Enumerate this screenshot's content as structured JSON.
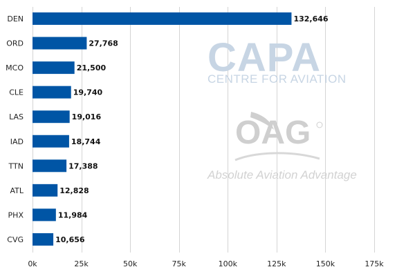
{
  "watermarks": {
    "capa_logo": "CAPA",
    "capa_sub": "CENTRE FOR AVIATION",
    "oag_logo": "OAG",
    "oag_tagline": "Absolute Aviation Advantage"
  },
  "chart_data": {
    "type": "bar",
    "orientation": "horizontal",
    "categories": [
      "DEN",
      "ORD",
      "MCO",
      "CLE",
      "LAS",
      "IAD",
      "TTN",
      "ATL",
      "PHX",
      "CVG"
    ],
    "values": [
      132646,
      27768,
      21500,
      19740,
      19016,
      18744,
      17388,
      12828,
      11984,
      10656
    ],
    "value_labels": [
      "132,646",
      "27,768",
      "21,500",
      "19,740",
      "19,016",
      "18,744",
      "17,388",
      "12,828",
      "11,984",
      "10,656"
    ],
    "xlim": [
      0,
      175000
    ],
    "x_ticks": [
      0,
      25000,
      50000,
      75000,
      100000,
      125000,
      150000,
      175000
    ],
    "x_tick_labels": [
      "0k",
      "25k",
      "50k",
      "75k",
      "100k",
      "125k",
      "150k",
      "175k"
    ],
    "title": "",
    "xlabel": "",
    "ylabel": "",
    "grid": "vertical",
    "bar_color": "#0055a5",
    "grid_color": "#d4d4d4"
  }
}
